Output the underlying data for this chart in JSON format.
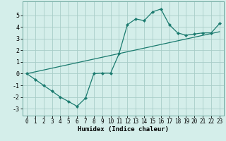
{
  "xlabel": "Humidex (Indice chaleur)",
  "background_color": "#d4eeea",
  "grid_color": "#a8cdc8",
  "line_color": "#1a7a6e",
  "xlim": [
    -0.5,
    23.5
  ],
  "ylim": [
    -3.6,
    6.2
  ],
  "xticks": [
    0,
    1,
    2,
    3,
    4,
    5,
    6,
    7,
    8,
    9,
    10,
    11,
    12,
    13,
    14,
    15,
    16,
    17,
    18,
    19,
    20,
    21,
    22,
    23
  ],
  "yticks": [
    -3,
    -2,
    -1,
    0,
    1,
    2,
    3,
    4,
    5
  ],
  "line1_x": [
    0,
    1,
    2,
    3,
    4,
    5,
    6,
    7,
    8,
    9,
    10,
    11,
    12,
    13,
    14,
    15,
    16,
    17,
    18,
    19,
    20,
    21,
    22,
    23
  ],
  "line1_y": [
    0.0,
    -0.5,
    -1.0,
    -1.5,
    -2.0,
    -2.4,
    -2.8,
    -2.1,
    0.0,
    0.05,
    0.05,
    1.7,
    4.2,
    4.7,
    4.55,
    5.3,
    5.55,
    4.2,
    3.5,
    3.3,
    3.4,
    3.5,
    3.5,
    4.3
  ],
  "line2_x": [
    0,
    23
  ],
  "line2_y": [
    0.0,
    3.6
  ]
}
